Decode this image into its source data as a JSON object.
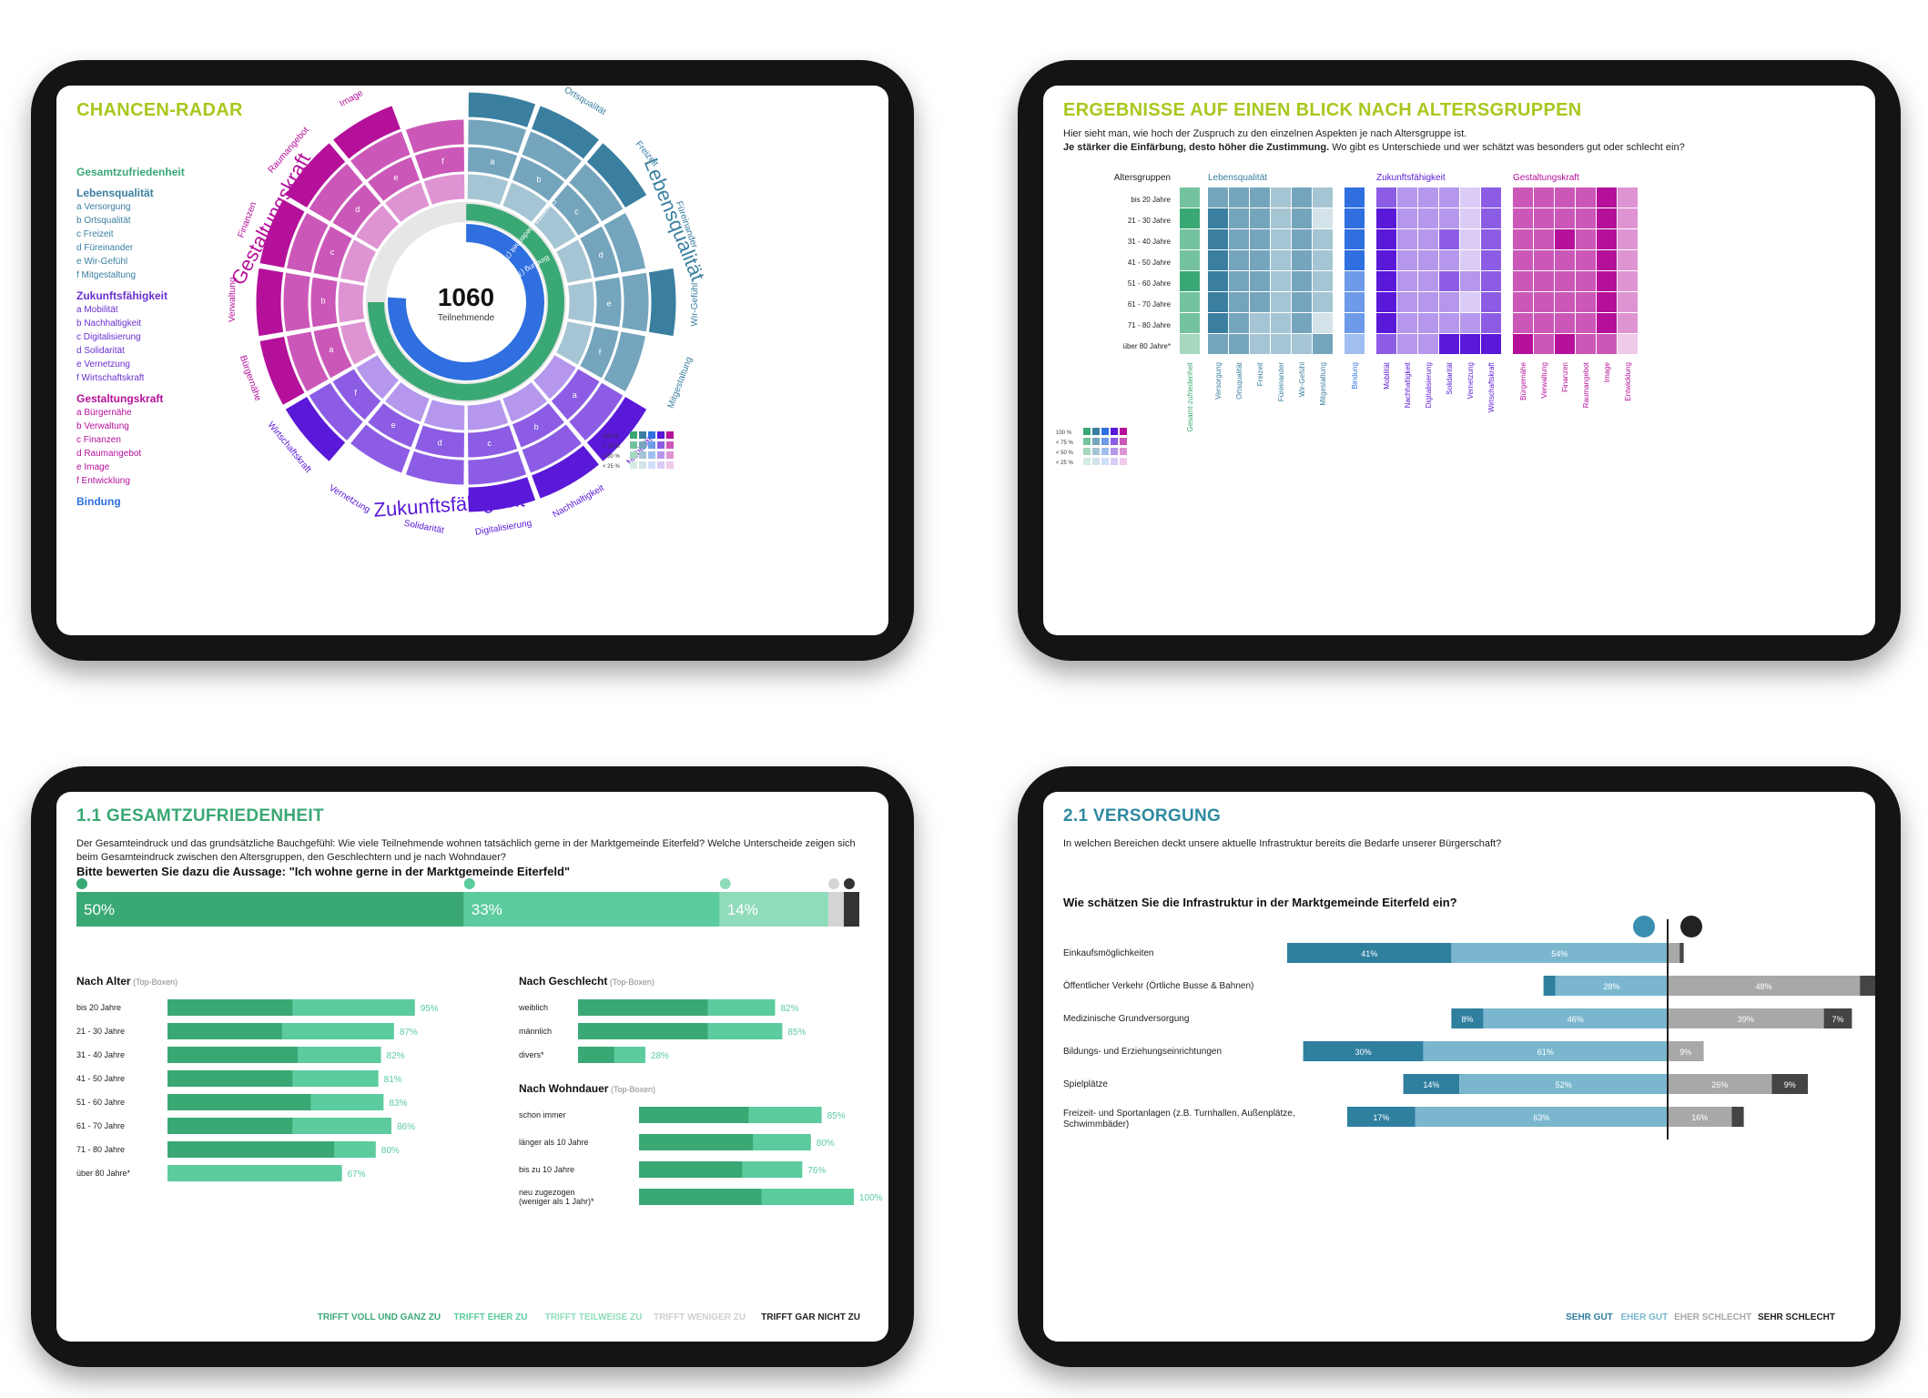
{
  "radar": {
    "title": "CHANCEN-RADAR",
    "total": "1060",
    "total_label": "Teilnehmende",
    "legend": [
      {
        "head": "Gesamtzufriedenheit",
        "color": "#3aa874",
        "items": []
      },
      {
        "head": "Lebensqualität",
        "color": "#3a7fa0",
        "items": [
          "a  Versorgung",
          "b  Ortsqualität",
          "c  Freizeit",
          "d  Füreinander",
          "e  Wir-Gefühl",
          "f  Mitgestaltung"
        ]
      },
      {
        "head": "Zukunftsfähigkeit",
        "color": "#6a2fd0",
        "items": [
          "a  Mobilität",
          "b  Nachhaltigkeit",
          "c  Digitalisierung",
          "d  Solidarität",
          "e  Vernetzung",
          "f  Wirtschaftskraft"
        ]
      },
      {
        "head": "Gestaltungskraft",
        "color": "#b5109a",
        "items": [
          "a  Bürgernähe",
          "b  Verwaltung",
          "c  Finanzen",
          "d  Raumangebot",
          "e  Image",
          "f  Entwicklung"
        ]
      },
      {
        "head": "Bindung",
        "color": "#2f6fe0",
        "items": []
      }
    ],
    "big_labels": [
      "Lebensqualität",
      "Zukunftsfähigkeit",
      "Gestaltungskraft"
    ],
    "sector_labels": [
      "Versorgung",
      "Ortsqualität",
      "Freizeit",
      "Füreinander",
      "Wir-Gefühl",
      "Mitgestaltung",
      "Mobilität",
      "Nachhaltigkeit",
      "Digitalisierung",
      "Solidarität",
      "Vernetzung",
      "Wirtschaftskraft",
      "Bürgernähe",
      "Verwaltung",
      "Finanzen",
      "Raumangebot",
      "Image",
      "Entwicklung"
    ],
    "letters": [
      "a",
      "b",
      "c",
      "d",
      "e",
      "f"
    ],
    "ring_labels": [
      "Gesamtzufriedenheit (75 %)",
      "Bindung (76 %)"
    ],
    "scale": [
      "100 %",
      "< 75 %",
      "< 50 %",
      "< 25 %"
    ]
  },
  "chart_data": [
    {
      "type": "radial",
      "title": "CHANCEN-RADAR",
      "center": {
        "value": 1060,
        "label": "Teilnehmende"
      },
      "rings": [
        {
          "name": "Gesamtzufriedenheit",
          "value": 75
        },
        {
          "name": "Bindung",
          "value": 76
        }
      ],
      "groups": [
        {
          "name": "Lebensqualität",
          "sectors": [
            "Versorgung",
            "Ortsqualität",
            "Freizeit",
            "Füreinander",
            "Wir-Gefühl",
            "Mitgestaltung"
          ],
          "levels": [
            5,
            4,
            5,
            3,
            4,
            3
          ]
        },
        {
          "name": "Zukunftsfähigkeit",
          "sectors": [
            "Mobilität",
            "Nachhaltigkeit",
            "Digitalisierung",
            "Solidarität",
            "Vernetzung",
            "Wirtschaftskraft"
          ],
          "levels": [
            5,
            4,
            4,
            3,
            3,
            4
          ]
        },
        {
          "name": "Gestaltungskraft",
          "sectors": [
            "Bürgernähe",
            "Verwaltung",
            "Finanzen",
            "Raumangebot",
            "Image",
            "Entwicklung"
          ],
          "levels": [
            4,
            4,
            4,
            4,
            5,
            3
          ]
        }
      ]
    },
    {
      "type": "heatmap",
      "title": "ERGEBNISSE AUF EINEN BLICK NACH ALTERSGRUPPEN",
      "rows": [
        "bis 20 Jahre",
        "21 - 30 Jahre",
        "31 - 40 Jahre",
        "41 - 50 Jahre",
        "51 - 60 Jahre",
        "61 - 70 Jahre",
        "71 - 80 Jahre",
        "über 80 Jahre*"
      ],
      "row_header": "Altersgruppen",
      "groups": [
        {
          "name": "",
          "columns": [
            "Gesamt-zufriedenheit"
          ],
          "color": "#3aa874",
          "levels": [
            [
              3
            ],
            [
              4
            ],
            [
              3
            ],
            [
              3
            ],
            [
              4
            ],
            [
              3
            ],
            [
              3
            ],
            [
              2
            ]
          ]
        },
        {
          "name": "Lebensqualität",
          "columns": [
            "Versorgung",
            "Ortsqualität",
            "Freizeit",
            "Füreinander",
            "Wir-Gefühl",
            "Mitgestaltung"
          ],
          "color": "#3a7fa0",
          "levels": [
            [
              3,
              3,
              3,
              2,
              3,
              2
            ],
            [
              4,
              3,
              3,
              2,
              3,
              1
            ],
            [
              4,
              3,
              3,
              2,
              3,
              2
            ],
            [
              4,
              3,
              3,
              2,
              3,
              2
            ],
            [
              4,
              3,
              3,
              2,
              3,
              2
            ],
            [
              4,
              3,
              3,
              2,
              3,
              2
            ],
            [
              4,
              3,
              2,
              2,
              3,
              1
            ],
            [
              3,
              3,
              2,
              2,
              2,
              3
            ]
          ]
        },
        {
          "name": "",
          "columns": [
            "Bindung"
          ],
          "color": "#2f6fe0",
          "levels": [
            [
              4
            ],
            [
              4
            ],
            [
              4
            ],
            [
              4
            ],
            [
              3
            ],
            [
              3
            ],
            [
              3
            ],
            [
              2
            ]
          ]
        },
        {
          "name": "Zukunftsfähigkeit",
          "columns": [
            "Mobilität",
            "Nachhaltigkeit",
            "Digitalisierung",
            "Solidarität",
            "Vernetzung",
            "Wirtschaftskraft"
          ],
          "color": "#5a18d8",
          "levels": [
            [
              3,
              2,
              2,
              2,
              1,
              3
            ],
            [
              4,
              2,
              2,
              2,
              1,
              3
            ],
            [
              4,
              2,
              2,
              3,
              1,
              3
            ],
            [
              4,
              2,
              2,
              2,
              1,
              3
            ],
            [
              4,
              2,
              2,
              3,
              2,
              3
            ],
            [
              4,
              2,
              2,
              2,
              1,
              3
            ],
            [
              4,
              2,
              2,
              2,
              2,
              3
            ],
            [
              3,
              2,
              2,
              4,
              4,
              4
            ]
          ]
        },
        {
          "name": "Gestaltungskraft",
          "columns": [
            "Bürgernähe",
            "Verwaltung",
            "Finanzen",
            "Raumangebot",
            "Image",
            "Entwicklung"
          ],
          "color": "#b5109a",
          "levels": [
            [
              3,
              3,
              3,
              3,
              4,
              2
            ],
            [
              3,
              3,
              3,
              3,
              4,
              2
            ],
            [
              3,
              3,
              4,
              3,
              4,
              2
            ],
            [
              3,
              3,
              3,
              3,
              4,
              2
            ],
            [
              3,
              3,
              3,
              3,
              4,
              2
            ],
            [
              3,
              3,
              3,
              3,
              4,
              2
            ],
            [
              3,
              3,
              3,
              3,
              4,
              2
            ],
            [
              4,
              3,
              4,
              3,
              3,
              1
            ]
          ]
        }
      ],
      "scale": [
        "100 %",
        "< 75 %",
        "< 50 %",
        "< 25 %"
      ]
    },
    {
      "type": "bar",
      "title": "1.1 GESAMTZUFRIEDENHEIT",
      "question": "Bitte bewerten Sie dazu die Aussage: \"Ich wohne gerne in der Marktgemeinde Eiterfeld\"",
      "overall": [
        50,
        33,
        14,
        2,
        2
      ],
      "overall_labels": [
        "50%",
        "33%",
        "14%"
      ],
      "by_age": {
        "title": "Nach Alter",
        "note": "(Top-Boxen)",
        "categories": [
          "bis 20 Jahre",
          "21 - 30 Jahre",
          "31 - 40 Jahre",
          "41 - 50 Jahre",
          "51 - 60 Jahre",
          "61 - 70 Jahre",
          "71 - 80 Jahre",
          "über 80 Jahre*"
        ],
        "values": [
          95,
          87,
          82,
          81,
          83,
          86,
          80,
          67
        ],
        "full": [
          48,
          44,
          50,
          48,
          55,
          48,
          64,
          0
        ]
      },
      "by_gender": {
        "title": "Nach Geschlecht",
        "note": "(Top-Boxen)",
        "categories": [
          "weiblich",
          "männlich",
          "divers*"
        ],
        "values": [
          82,
          85,
          28
        ],
        "full": [
          54,
          54,
          15
        ]
      },
      "by_duration": {
        "title": "Nach Wohndauer",
        "note": "(Top-Boxen)",
        "categories": [
          "schon immer",
          "länger als 10 Jahre",
          "bis zu 10 Jahre",
          "neu zugezogen\n(weniger als 1 Jahr)*"
        ],
        "values": [
          85,
          80,
          76,
          100
        ],
        "full": [
          51,
          53,
          48,
          57
        ]
      },
      "legend": [
        "TRIFFT VOLL UND GANZ ZU",
        "TRIFFT EHER ZU",
        "TRIFFT TEILWEISE ZU",
        "TRIFFT WENIGER ZU",
        "TRIFFT GAR NICHT ZU"
      ]
    },
    {
      "type": "diverging-bar",
      "title": "2.1 VERSORGUNG",
      "question": "Wie schätzen Sie die Infrastruktur in der Marktgemeinde Eiterfeld ein?",
      "categories": [
        "Einkaufsmöglichkeiten",
        "Öffentlicher Verkehr (Örtliche Busse & Bahnen)",
        "Medizinische Grundversorgung",
        "Bildungs- und Erziehungseinrichtungen",
        "Spielplätze",
        "Freizeit- und Sportanlagen (z.B. Turnhallen, Außenplätze, Schwimmbäder)"
      ],
      "series": [
        {
          "name": "SEHR GUT",
          "values": [
            41,
            3,
            8,
            30,
            14,
            17
          ],
          "labels": [
            "41%",
            "",
            "8%",
            "30%",
            "14%",
            "17%"
          ]
        },
        {
          "name": "EHER GUT",
          "values": [
            54,
            28,
            46,
            61,
            52,
            63
          ],
          "labels": [
            "54%",
            "28%",
            "46%",
            "61%",
            "52%",
            "63%"
          ]
        },
        {
          "name": "EHER SCHLECHT",
          "values": [
            3,
            48,
            39,
            9,
            26,
            16
          ],
          "labels": [
            "",
            "48%",
            "39%",
            "9%",
            "26%",
            "16%"
          ]
        },
        {
          "name": "SEHR SCHLECHT",
          "values": [
            1,
            21,
            7,
            0,
            9,
            3
          ],
          "labels": [
            "",
            "21%",
            "7%",
            "",
            "9%",
            ""
          ]
        }
      ]
    }
  ],
  "heat": {
    "title": "ERGEBNISSE AUF EINEN BLICK NACH ALTERSGRUPPEN",
    "intro1": "Hier sieht man, wie hoch der Zuspruch zu den einzelnen Aspekten je nach Altersgruppe ist.",
    "intro_bold": "Je stärker die Einfärbung, desto höher die Zustimmung.",
    "intro2": " Wo gibt es Unterschiede und wer schätzt was besonders gut oder schlecht ein?"
  },
  "sat": {
    "title": "1.1 GESAMTZUFRIEDENHEIT",
    "intro": "Der Gesamteindruck und das grundsätzliche Bauchgefühl: Wie viele Teilnehmende wohnen tatsächlich gerne in der Marktgemeinde Eiterfeld? Welche Unterscheide zeigen sich beim Gesamteindruck zwischen den Altersgruppen, den Geschlechtern und je nach Wohndauer?"
  },
  "vers": {
    "title": "2.1 VERSORGUNG",
    "intro": "In welchen Bereichen deckt unsere aktuelle Infrastruktur bereits die Bedarfe unserer Bürgerschaft?"
  },
  "colors": {
    "green": "#3aa874",
    "teal": "#3a7fa0",
    "blue": "#2f6fe0",
    "violet": "#5a18d8",
    "magenta": "#b5109a",
    "lime": "#a8c81e",
    "title_teal": "#2f8aa0"
  }
}
